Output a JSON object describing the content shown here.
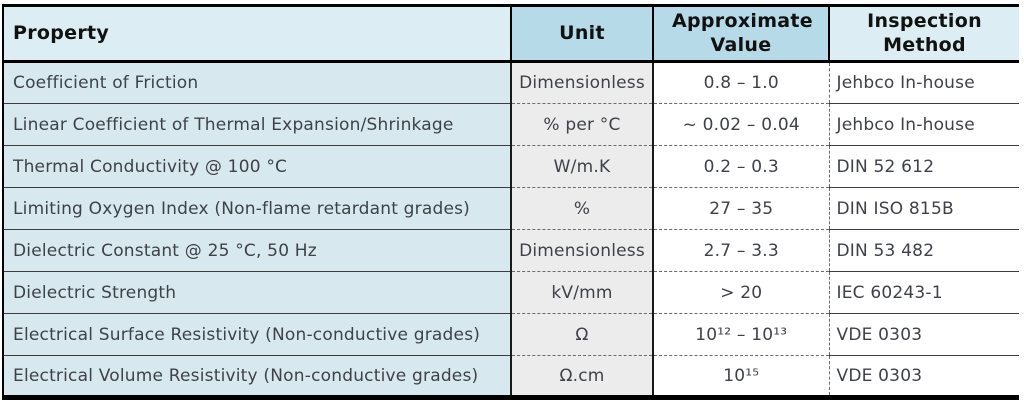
{
  "colors": {
    "header_light": "#dcedf3",
    "header_medium": "#b6dae7",
    "property_cell": "#d7e9ef",
    "unit_cell": "#ececec",
    "text_dark": "#3e4248",
    "border_dark": "#000000"
  },
  "table": {
    "headers": {
      "property": "Property",
      "unit": "Unit",
      "value": "Approximate Value",
      "method": "Inspection Method"
    },
    "rows": [
      {
        "property": "Coefficient of Friction",
        "unit": "Dimensionless",
        "value": "0.8 – 1.0",
        "method": "Jehbco In-house"
      },
      {
        "property": "Linear Coefficient of Thermal Expansion/Shrinkage",
        "unit": "% per °C",
        "value": "~ 0.02 – 0.04",
        "method": "Jehbco In-house"
      },
      {
        "property": "Thermal Conductivity @ 100 °C",
        "unit": "W/m.K",
        "value": "0.2 – 0.3",
        "method": "DIN 52 612"
      },
      {
        "property": "Limiting Oxygen Index (Non-flame retardant grades)",
        "unit": "%",
        "value": "27 – 35",
        "method": "DIN ISO 815B"
      },
      {
        "property": "Dielectric Constant @ 25 °C, 50 Hz",
        "unit": "Dimensionless",
        "value": "2.7 – 3.3",
        "method": "DIN 53 482"
      },
      {
        "property": "Dielectric Strength",
        "unit": "kV/mm",
        "value": "> 20",
        "method": "IEC 60243-1"
      },
      {
        "property": "Electrical Surface Resistivity (Non-conductive grades)",
        "unit": "Ω",
        "value": "10¹² – 10¹³",
        "method": "VDE 0303"
      },
      {
        "property": "Electrical Volume Resistivity (Non-conductive grades)",
        "unit": "Ω.cm",
        "value": "10¹⁵",
        "method": "VDE 0303"
      }
    ]
  }
}
